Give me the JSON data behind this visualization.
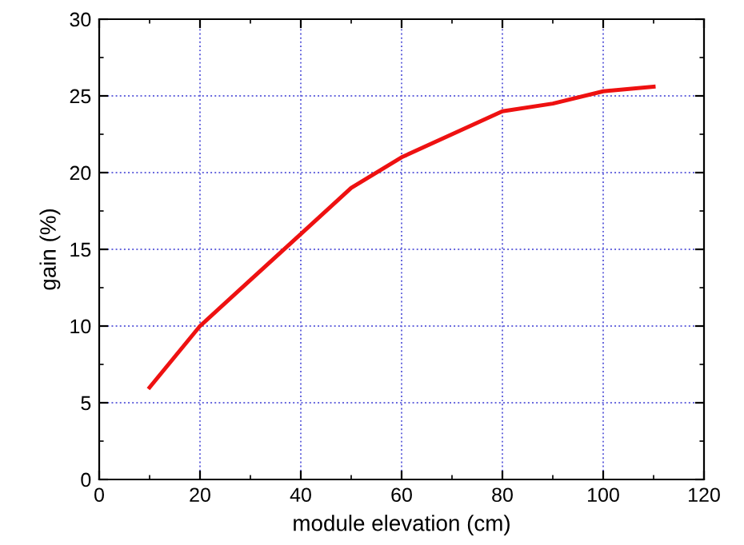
{
  "chart_data": {
    "type": "line",
    "xlabel": "module elevation (cm)",
    "ylabel": "gain (%)",
    "x": [
      10,
      20,
      30,
      40,
      50,
      60,
      70,
      80,
      90,
      100,
      110
    ],
    "series": [
      {
        "color": "#ee1111",
        "values": [
          6,
          10,
          13,
          16,
          19,
          21,
          22.5,
          24,
          24.5,
          25.3,
          25.6
        ]
      }
    ],
    "xlim": [
      0,
      120
    ],
    "xticks": [
      0,
      20,
      40,
      60,
      80,
      100,
      120
    ],
    "ylim": [
      0,
      30
    ],
    "yticks": [
      0,
      5,
      10,
      15,
      20,
      25,
      30
    ],
    "grid": true,
    "marker": "none",
    "line_style": "solid"
  }
}
